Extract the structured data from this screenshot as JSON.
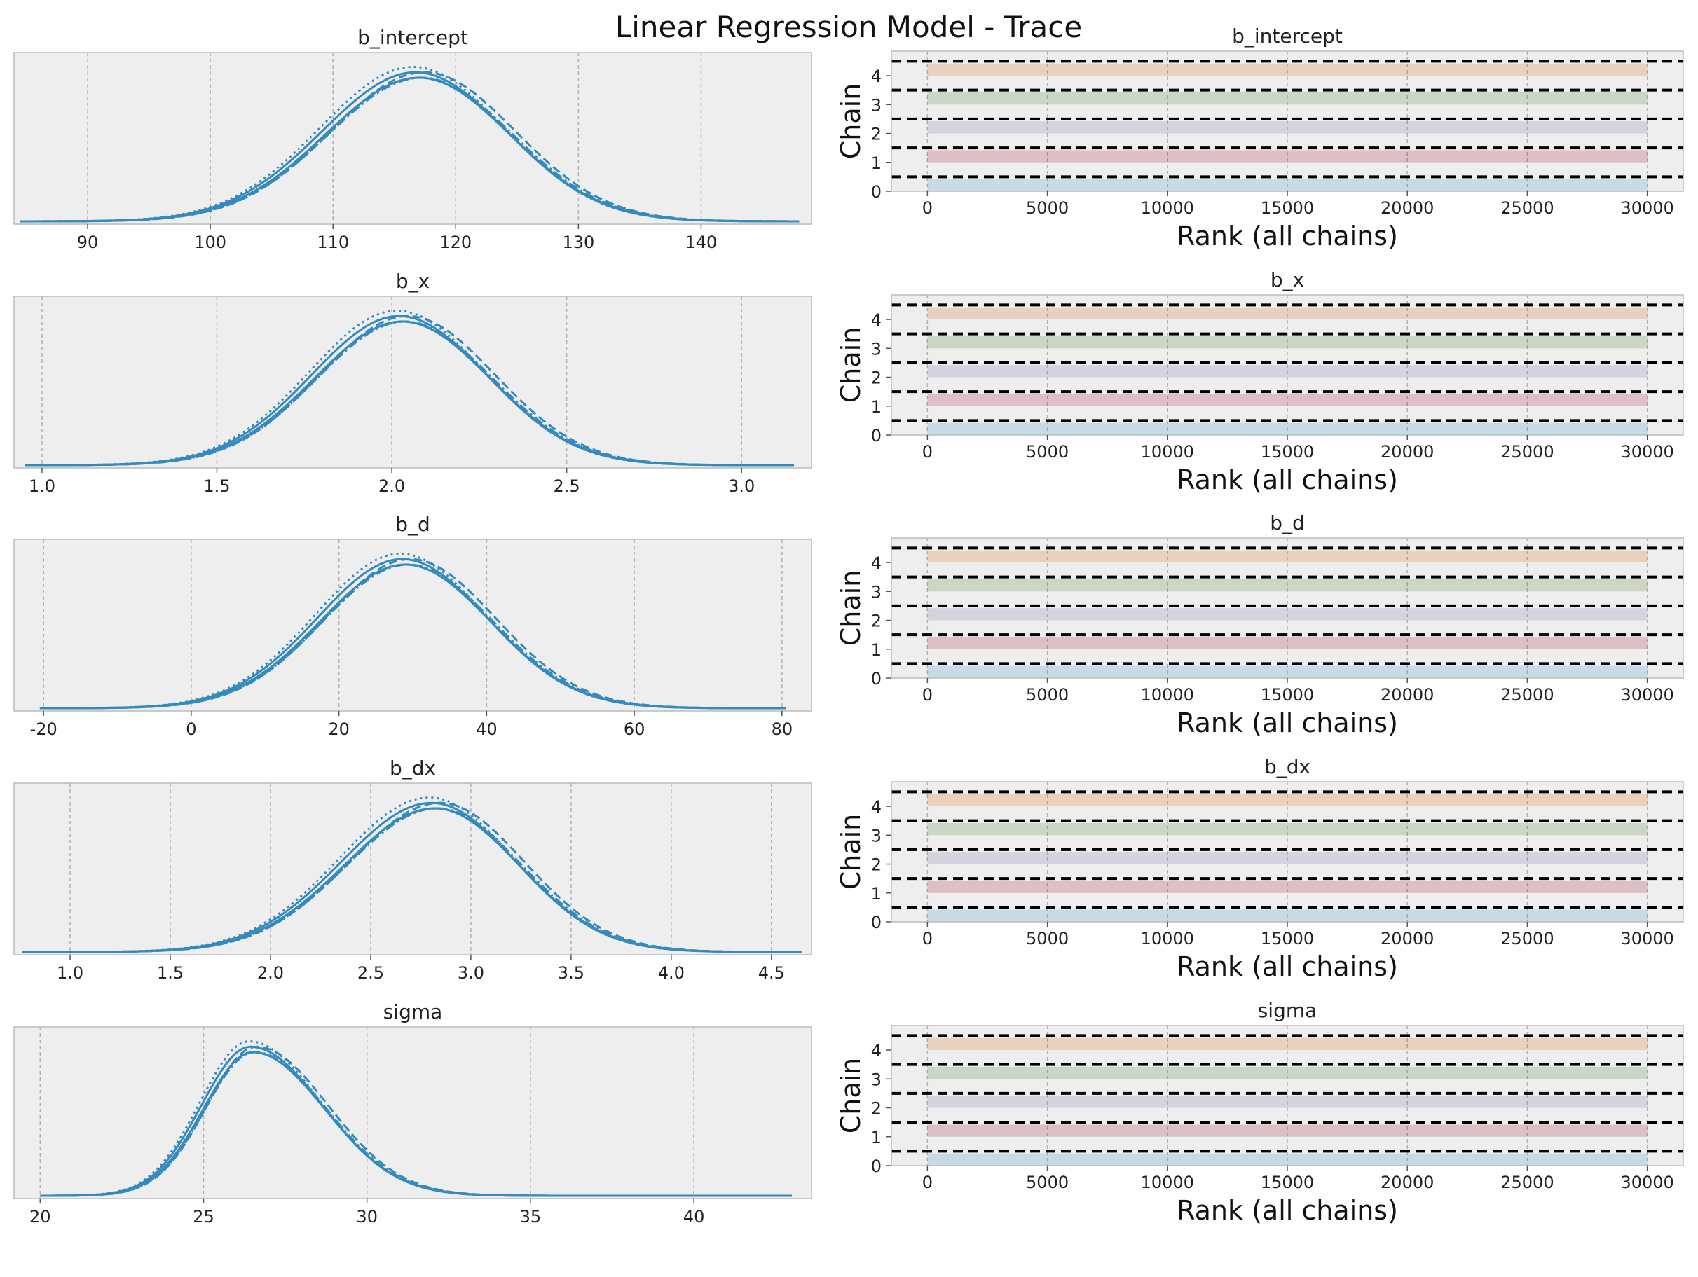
{
  "figure": {
    "suptitle": "Linear Regression Model - Trace"
  },
  "style": {
    "axes_bg": "#eeeeee",
    "frame": "#bcbcbc",
    "grid": "#b2b2b2",
    "kde_color": "#348abd",
    "rank_colors": [
      "#348abd",
      "#a60628",
      "#7a68a6",
      "#467821",
      "#d55e00"
    ],
    "ref_line": "#000000"
  },
  "chart_data": [
    {
      "type": "line",
      "kind": "posterior-kde",
      "title": "b_intercept",
      "xlim": [
        84,
        149
      ],
      "xticks": [
        90,
        100,
        110,
        120,
        130,
        140,
        150
      ],
      "yticks_shown": false,
      "center": 117,
      "sd_left": 7.6,
      "sd_right": 7.4,
      "support": [
        84.5,
        148
      ],
      "chains": 5,
      "grid": true
    },
    {
      "type": "line",
      "kind": "posterior-kde",
      "title": "b_x",
      "xlim": [
        0.92,
        3.2
      ],
      "xticks": [
        1.0,
        1.5,
        2.0,
        2.5,
        3.0
      ],
      "tick_decimals": 1,
      "yticks_shown": false,
      "center": 2.03,
      "sd_left": 0.25,
      "sd_right": 0.25,
      "support": [
        0.95,
        3.15
      ],
      "chains": 5,
      "grid": true
    },
    {
      "type": "line",
      "kind": "posterior-kde",
      "title": "b_d",
      "xlim": [
        -24,
        84
      ],
      "xticks": [
        -20,
        0,
        20,
        40,
        60,
        80
      ],
      "yticks_shown": false,
      "center": 29,
      "sd_left": 11.5,
      "sd_right": 11.5,
      "support": [
        -20.5,
        80.5
      ],
      "chains": 5,
      "grid": true
    },
    {
      "type": "line",
      "kind": "posterior-kde",
      "title": "b_dx",
      "xlim": [
        0.72,
        4.7
      ],
      "xticks": [
        1.0,
        1.5,
        2.0,
        2.5,
        3.0,
        3.5,
        4.0,
        4.5
      ],
      "tick_decimals": 1,
      "yticks_shown": false,
      "center": 2.82,
      "sd_left": 0.45,
      "sd_right": 0.42,
      "support": [
        0.76,
        4.65
      ],
      "chains": 5,
      "grid": true
    },
    {
      "type": "line",
      "kind": "posterior-kde",
      "title": "sigma",
      "xlim": [
        19.2,
        43.6
      ],
      "xticks": [
        20,
        25,
        30,
        35,
        40
      ],
      "yticks_shown": false,
      "center": 26.5,
      "sd_left": 1.5,
      "sd_right": 2.2,
      "support": [
        20,
        43
      ],
      "chains": 5,
      "grid": true
    },
    {
      "type": "bar",
      "kind": "rank-plot",
      "title": "b_intercept",
      "xlabel": "Rank (all chains)",
      "ylabel": "Chain",
      "xlim": [
        -1500,
        31500
      ],
      "ylim": [
        0,
        4.85
      ],
      "xticks": [
        0,
        5000,
        10000,
        15000,
        20000,
        25000,
        30000
      ],
      "yticks": [
        0,
        1,
        2,
        3,
        4
      ],
      "chains": [
        0,
        1,
        2,
        3,
        4
      ],
      "rank_range": [
        0,
        30000
      ],
      "reference_lines": [
        0.5,
        1.5,
        2.5,
        3.5,
        4.5
      ],
      "grid": true
    },
    {
      "type": "bar",
      "kind": "rank-plot",
      "title": "b_x",
      "xlabel": "Rank (all chains)",
      "ylabel": "Chain",
      "xlim": [
        -1500,
        31500
      ],
      "ylim": [
        0,
        4.85
      ],
      "xticks": [
        0,
        5000,
        10000,
        15000,
        20000,
        25000,
        30000
      ],
      "yticks": [
        0,
        1,
        2,
        3,
        4
      ],
      "chains": [
        0,
        1,
        2,
        3,
        4
      ],
      "rank_range": [
        0,
        30000
      ],
      "reference_lines": [
        0.5,
        1.5,
        2.5,
        3.5,
        4.5
      ],
      "grid": true
    },
    {
      "type": "bar",
      "kind": "rank-plot",
      "title": "b_d",
      "xlabel": "Rank (all chains)",
      "ylabel": "Chain",
      "xlim": [
        -1500,
        31500
      ],
      "ylim": [
        0,
        4.85
      ],
      "xticks": [
        0,
        5000,
        10000,
        15000,
        20000,
        25000,
        30000
      ],
      "yticks": [
        0,
        1,
        2,
        3,
        4
      ],
      "chains": [
        0,
        1,
        2,
        3,
        4
      ],
      "rank_range": [
        0,
        30000
      ],
      "reference_lines": [
        0.5,
        1.5,
        2.5,
        3.5,
        4.5
      ],
      "grid": true
    },
    {
      "type": "bar",
      "kind": "rank-plot",
      "title": "b_dx",
      "xlabel": "Rank (all chains)",
      "ylabel": "Chain",
      "xlim": [
        -1500,
        31500
      ],
      "ylim": [
        0,
        4.85
      ],
      "xticks": [
        0,
        5000,
        10000,
        15000,
        20000,
        25000,
        30000
      ],
      "yticks": [
        0,
        1,
        2,
        3,
        4
      ],
      "chains": [
        0,
        1,
        2,
        3,
        4
      ],
      "rank_range": [
        0,
        30000
      ],
      "reference_lines": [
        0.5,
        1.5,
        2.5,
        3.5,
        4.5
      ],
      "grid": true
    },
    {
      "type": "bar",
      "kind": "rank-plot",
      "title": "sigma",
      "xlabel": "Rank (all chains)",
      "ylabel": "Chain",
      "xlim": [
        -1500,
        31500
      ],
      "ylim": [
        0,
        4.85
      ],
      "xticks": [
        0,
        5000,
        10000,
        15000,
        20000,
        25000,
        30000
      ],
      "yticks": [
        0,
        1,
        2,
        3,
        4
      ],
      "chains": [
        0,
        1,
        2,
        3,
        4
      ],
      "rank_range": [
        0,
        30000
      ],
      "reference_lines": [
        0.5,
        1.5,
        2.5,
        3.5,
        4.5
      ],
      "grid": true
    }
  ]
}
